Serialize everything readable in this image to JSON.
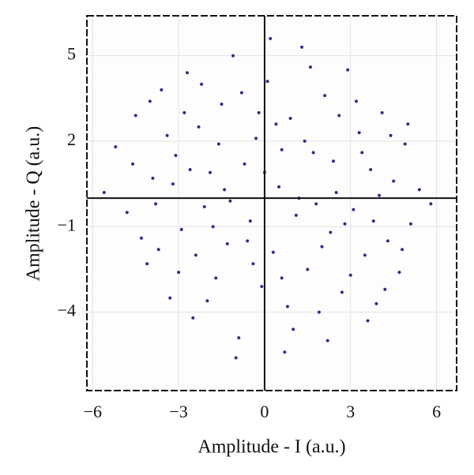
{
  "chart_data": {
    "type": "scatter",
    "x_label": "Amplitude - I (a.u.)",
    "y_label": "Amplitude - Q (a.u.)",
    "xlim": [
      -6.2,
      6.7
    ],
    "ylim": [
      -6.75,
      6.4
    ],
    "xticks": [
      {
        "value": -6,
        "label": "−6"
      },
      {
        "value": -3,
        "label": "−3"
      },
      0,
      3,
      6
    ],
    "yticks": [
      {
        "value": -4,
        "label": "−4"
      },
      {
        "value": -1,
        "label": "−1"
      },
      2,
      5
    ],
    "grid": true,
    "series": [
      {
        "color": "#2b2f8c",
        "x": [
          -5.2,
          -4.8,
          -4.5,
          -4.1,
          -3.9,
          -3.6,
          -3.3,
          -3.1,
          -2.9,
          -2.7,
          -2.5,
          -2.3,
          -2.1,
          -1.9,
          -1.7,
          -1.5,
          -1.3,
          -1.1,
          -0.9,
          -0.7,
          -0.5,
          -0.3,
          -0.1,
          0.1,
          0.3,
          0.5,
          0.7,
          0.9,
          1.1,
          1.3,
          1.5,
          1.7,
          1.9,
          2.1,
          2.3,
          2.5,
          2.7,
          2.9,
          3.1,
          3.3,
          3.5,
          3.7,
          3.9,
          4.1,
          4.3,
          4.5,
          4.7,
          4.9,
          5.1,
          5.4,
          5.8,
          -5.6,
          -4.3,
          -3.8,
          -3.4,
          -2.8,
          -2.4,
          -2.0,
          -1.6,
          -1.2,
          -0.8,
          -0.4,
          0.0,
          0.4,
          0.8,
          1.2,
          1.6,
          2.0,
          2.4,
          2.8,
          3.2,
          3.6,
          4.0,
          4.4,
          4.8,
          -1.0,
          0.2,
          1.0,
          -2.2,
          3.0,
          -4.6,
          -3.0,
          -1.4,
          0.6,
          1.8,
          2.6,
          3.4,
          -0.6,
          -1.8,
          -3.2,
          2.2,
          -2.6,
          1.4,
          0.6,
          -0.2,
          3.8,
          -3.7,
          4.2,
          -4.0,
          5.0
        ],
        "values": [
          1.8,
          -0.5,
          2.9,
          -2.3,
          0.7,
          3.8,
          -3.5,
          1.5,
          -1.1,
          4.4,
          -4.2,
          2.5,
          -0.3,
          0.9,
          -2.8,
          3.3,
          -1.6,
          5.0,
          -4.9,
          1.2,
          -0.8,
          2.1,
          -3.1,
          4.1,
          -1.9,
          0.4,
          -5.4,
          2.8,
          -0.6,
          5.3,
          -2.5,
          1.6,
          -4.0,
          3.6,
          -1.2,
          0.2,
          -3.3,
          4.5,
          -0.4,
          2.3,
          -2.0,
          1.0,
          -3.7,
          3.0,
          -1.5,
          0.6,
          -2.6,
          1.9,
          -0.9,
          0.3,
          -0.2,
          0.2,
          -1.4,
          -0.2,
          2.2,
          3.0,
          -2.0,
          -3.6,
          1.9,
          -0.1,
          3.7,
          -2.3,
          0.9,
          2.6,
          -3.8,
          0.0,
          4.6,
          -1.7,
          1.3,
          -0.9,
          3.4,
          -4.3,
          0.1,
          2.2,
          -1.8,
          -5.6,
          5.6,
          -4.6,
          4.0,
          -2.7,
          1.2,
          -2.6,
          0.3,
          1.7,
          -0.2,
          2.9,
          1.6,
          -1.5,
          -1.0,
          0.5,
          -5.0,
          1.0,
          2.0,
          -2.8,
          3.0,
          -0.8,
          -1.8,
          -3.2,
          3.4,
          2.6
        ]
      }
    ]
  }
}
